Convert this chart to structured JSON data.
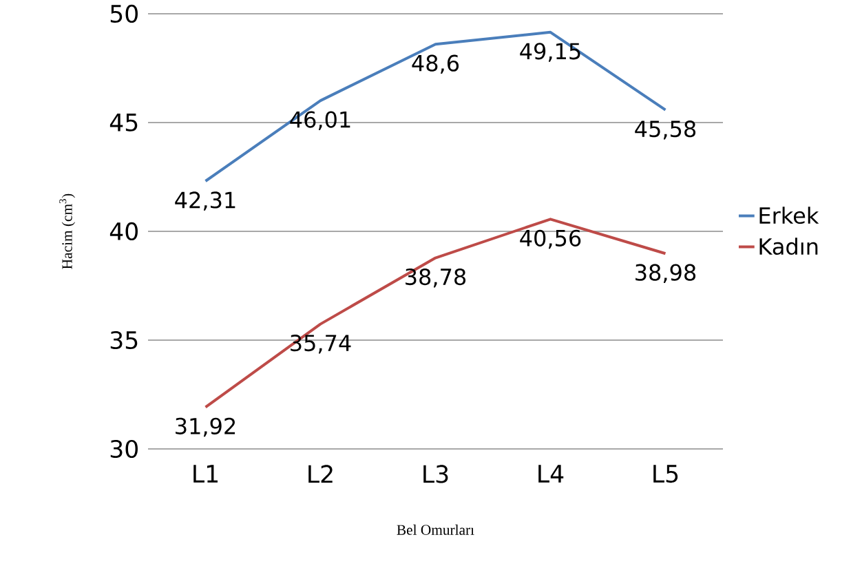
{
  "chart_data": {
    "type": "line",
    "xlabel": "Bel Omurları",
    "ylabel": "Hacim (cm$^{3}$)",
    "categories": [
      "L1",
      "L2",
      "L3",
      "L4",
      "L5"
    ],
    "series": [
      {
        "name": "Erkek",
        "color": "#4a7ebb",
        "values": [
          42.31,
          46.01,
          48.6,
          49.15,
          45.58
        ],
        "value_labels": [
          "42,31",
          "46,01",
          "48,6",
          "49,15",
          "45,58"
        ]
      },
      {
        "name": "Kadın",
        "color": "#be4b48",
        "values": [
          31.92,
          35.74,
          38.78,
          40.56,
          38.98
        ],
        "value_labels": [
          "31,92",
          "35,74",
          "38,78",
          "40,56",
          "38,98"
        ]
      }
    ],
    "ylim": [
      30,
      50
    ],
    "yticks": [
      30,
      35,
      40,
      45,
      50
    ],
    "grid": "y",
    "legend": "right",
    "marker": "none",
    "line_style": "solid"
  }
}
